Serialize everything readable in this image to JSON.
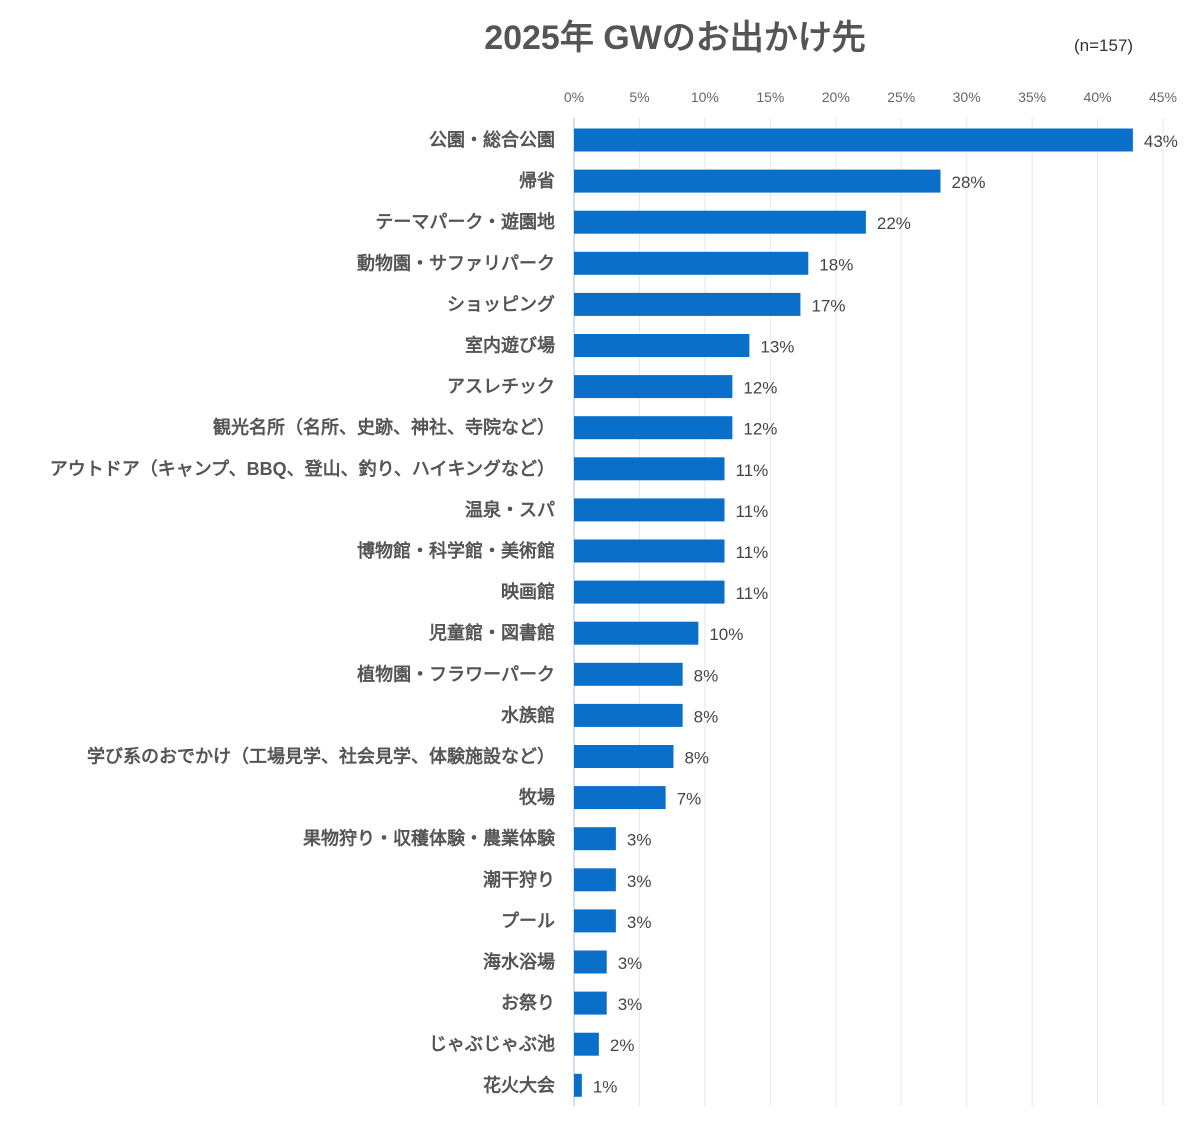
{
  "chart_data": {
    "type": "bar",
    "orientation": "horizontal",
    "title": "2025年 GWのお出かけ先",
    "sample_size": "(n=157)",
    "xlabel": "",
    "ylabel": "",
    "xlim": [
      0,
      45
    ],
    "ticks": [
      0,
      5,
      10,
      15,
      20,
      25,
      30,
      35,
      40,
      45
    ],
    "tick_labels": [
      "0%",
      "5%",
      "10%",
      "15%",
      "20%",
      "25%",
      "30%",
      "35%",
      "40%",
      "45%"
    ],
    "grid": true,
    "bar_color": "#0a6fc9",
    "categories": [
      "公園・総合公園",
      "帰省",
      "テーマパーク・遊園地",
      "動物園・サファリパーク",
      "ショッピング",
      "室内遊び場",
      "アスレチック",
      "観光名所（名所、史跡、神社、寺院など）",
      "アウトドア（キャンプ、BBQ、登山、釣り、ハイキングなど）",
      "温泉・スパ",
      "博物館・科学館・美術館",
      "映画館",
      "児童館・図書館",
      "植物園・フラワーパーク",
      "水族館",
      "学び系のおでかけ（工場見学、社会見学、体験施設など）",
      "牧場",
      "果物狩り・収穫体験・農業体験",
      "潮干狩り",
      "プール",
      "海水浴場",
      "お祭り",
      "じゃぶじゃぶ池",
      "花火大会"
    ],
    "values": [
      42.7,
      28.0,
      22.3,
      17.9,
      17.3,
      13.4,
      12.1,
      12.1,
      11.5,
      11.5,
      11.5,
      11.5,
      9.5,
      8.3,
      8.3,
      7.6,
      7.0,
      3.2,
      3.2,
      3.2,
      2.5,
      2.5,
      1.9,
      0.6
    ],
    "value_labels": [
      "43%",
      "28%",
      "22%",
      "18%",
      "17%",
      "13%",
      "12%",
      "12%",
      "11%",
      "11%",
      "11%",
      "11%",
      "10%",
      "8%",
      "8%",
      "8%",
      "7%",
      "3%",
      "3%",
      "3%",
      "3%",
      "3%",
      "2%",
      "1%"
    ]
  }
}
